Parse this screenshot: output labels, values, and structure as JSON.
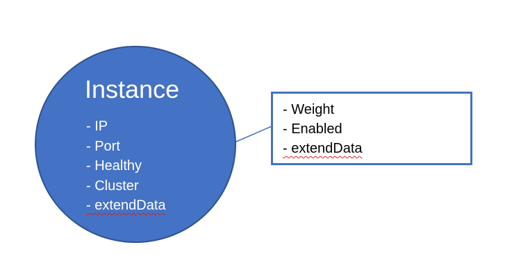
{
  "instance": {
    "title": "Instance",
    "fields": [
      "- IP",
      "- Port",
      "- Healthy",
      "- Cluster",
      "- extendData"
    ]
  },
  "detail_box": {
    "fields": [
      "- Weight",
      "- Enabled",
      "- extendData"
    ]
  },
  "colors": {
    "circle_fill": "#4472c4",
    "circle_border": "#2f528f",
    "box_border": "#4472c4",
    "connector": "#4472c4",
    "spellcheck": "#e02020"
  }
}
